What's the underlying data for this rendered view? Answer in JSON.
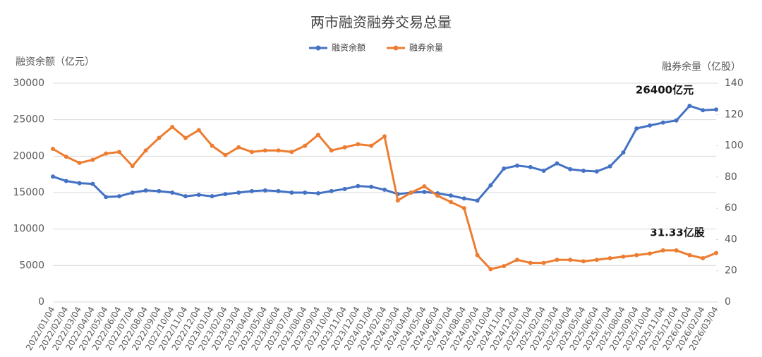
{
  "chart_data": {
    "type": "line",
    "title": "两市融资融券交易总量",
    "y_label": "融资余额（亿元）",
    "y2_label": "融券余量（亿股）",
    "categories": [
      "2022/01/04",
      "2022/02/04",
      "2022/03/04",
      "2022/04/04",
      "2022/05/04",
      "2022/06/04",
      "2022/07/04",
      "2022/08/04",
      "2022/09/04",
      "2022/10/04",
      "2022/11/04",
      "2022/12/04",
      "2023/01/04",
      "2023/02/04",
      "2023/03/04",
      "2023/04/04",
      "2023/05/04",
      "2023/06/04",
      "2023/07/04",
      "2023/08/04",
      "2023/09/04",
      "2023/10/04",
      "2023/11/04",
      "2023/12/04",
      "2024/01/04",
      "2024/02/04",
      "2024/03/04",
      "2024/04/04",
      "2024/05/04",
      "2024/06/04",
      "2024/07/04",
      "2024/08/04",
      "2024/09/04",
      "2024/10/04",
      "2024/11/04",
      "2024/12/04",
      "2025/01/04",
      "2025/02/04",
      "2025/03/04",
      "2025/04/04",
      "2025/05/04",
      "2025/06/04",
      "2025/07/04",
      "2025/08/04",
      "2025/09/04",
      "2025/10/04",
      "2025/11/04",
      "2025/12/04",
      "2026/01/04",
      "2026/02/04",
      "2026/03/04"
    ],
    "series": [
      {
        "name": "融资余额",
        "color": "#4472c4",
        "values": [
          17200,
          16600,
          16300,
          16200,
          14400,
          14500,
          15000,
          15300,
          15200,
          15000,
          14500,
          14700,
          14500,
          14800,
          15000,
          15200,
          15300,
          15200,
          15000,
          15000,
          14900,
          15200,
          15500,
          15900,
          15800,
          15400,
          14800,
          15000,
          15100,
          14900,
          14600,
          14200,
          13900,
          16000,
          18300,
          18700,
          18500,
          18000,
          19000,
          18200,
          18000,
          17900,
          18600,
          20500,
          23800,
          24200,
          24600,
          24900,
          26900,
          26300,
          26400
        ]
      },
      {
        "name": "融券余量",
        "color": "#ed7d31",
        "axis": "y2",
        "values": [
          98,
          93,
          89,
          91,
          95,
          96,
          87,
          97,
          105,
          112,
          105,
          110,
          100,
          94,
          99,
          96,
          97,
          97,
          96,
          100,
          107,
          97,
          99,
          101,
          100,
          106,
          65,
          70,
          74,
          68,
          64,
          60,
          30,
          21,
          23,
          27,
          25,
          25,
          27,
          27,
          26,
          27,
          28,
          29,
          30,
          31,
          33,
          33,
          30,
          28,
          31.33
        ]
      }
    ],
    "ylim": [
      0,
      30000
    ],
    "yticks": [
      0,
      5000,
      10000,
      15000,
      20000,
      25000,
      30000
    ],
    "y2lim": [
      0,
      140
    ],
    "y2ticks": [
      0,
      20,
      40,
      60,
      80,
      100,
      120,
      140
    ],
    "grid": true,
    "legend": "top",
    "annotations": [
      "26400亿元",
      "31.33亿股"
    ]
  }
}
